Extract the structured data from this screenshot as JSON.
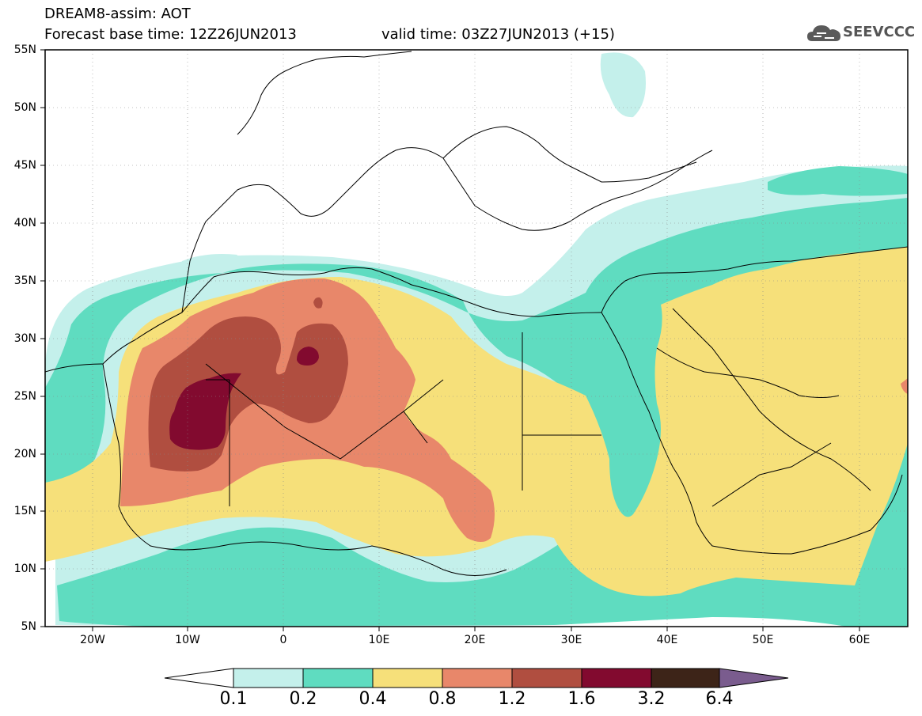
{
  "header": {
    "title": "DREAM8-assim: AOT",
    "base_time": "Forecast base time: 12Z26JUN2013",
    "valid_time": "valid time: 03Z27JUN2013 (+15)"
  },
  "logo": {
    "text": "SEEVCCC",
    "icon": "cloud-icon"
  },
  "map": {
    "lat_labels": [
      "55N",
      "50N",
      "45N",
      "40N",
      "35N",
      "30N",
      "25N",
      "20N",
      "15N",
      "10N",
      "5N"
    ],
    "lon_labels": [
      "20W",
      "10W",
      "0",
      "10E",
      "20E",
      "30E",
      "40E",
      "50E",
      "60E"
    ],
    "lat_range": [
      5,
      55
    ],
    "lon_range": [
      -25,
      65
    ],
    "grid": true
  },
  "colorbar": {
    "thresholds": [
      "0.1",
      "0.2",
      "0.4",
      "0.8",
      "1.2",
      "1.6",
      "3.2",
      "6.4"
    ],
    "colors": [
      "#ffffff",
      "#c4f0eb",
      "#5fdcc0",
      "#f6e07a",
      "#e8876a",
      "#b04e40",
      "#820a2f",
      "#3d2418",
      "#7a5c8e"
    ]
  }
}
